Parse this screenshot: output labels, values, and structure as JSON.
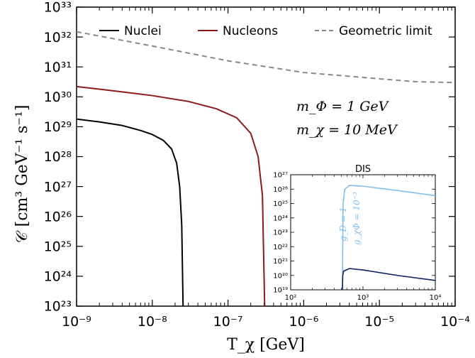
{
  "chart_data": [
    {
      "type": "line",
      "xscale": "log",
      "yscale": "log",
      "xlim": [
        1e-09,
        0.0001
      ],
      "ylim": [
        1e+23,
        1e+33
      ],
      "xlabel": "T_χ [GeV]",
      "ylabel": "𝒞 [cm³ GeV⁻¹ s⁻¹]",
      "x_ticks": [
        {
          "value": 1e-09,
          "label": "10⁻⁹"
        },
        {
          "value": 1e-08,
          "label": "10⁻⁸"
        },
        {
          "value": 1e-07,
          "label": "10⁻⁷"
        },
        {
          "value": 1e-06,
          "label": "10⁻⁶"
        },
        {
          "value": 1e-05,
          "label": "10⁻⁵"
        },
        {
          "value": 0.0001,
          "label": "10⁻⁴"
        }
      ],
      "y_ticks": [
        {
          "value": 1e+23,
          "label": "10²³"
        },
        {
          "value": 1e+24,
          "label": "10²⁴"
        },
        {
          "value": 1e+25,
          "label": "10²⁵"
        },
        {
          "value": 1e+26,
          "label": "10²⁶"
        },
        {
          "value": 1e+27,
          "label": "10²⁷"
        },
        {
          "value": 1e+28,
          "label": "10²⁸"
        },
        {
          "value": 1e+29,
          "label": "10²⁹"
        },
        {
          "value": 1e+30,
          "label": "10³⁰"
        },
        {
          "value": 1e+31,
          "label": "10³¹"
        },
        {
          "value": 1e+32,
          "label": "10³²"
        },
        {
          "value": 1e+33,
          "label": "10³³"
        }
      ],
      "legend_placement": "top",
      "series": [
        {
          "name": "Nuclei",
          "color": "#000000",
          "dash": "solid",
          "points": [
            [
              1e-09,
              1.8e+29
            ],
            [
              2e-09,
              1.45e+29
            ],
            [
              4e-09,
              1.1e+29
            ],
            [
              7e-09,
              7.5e+28
            ],
            [
              1e-08,
              5.5e+28
            ],
            [
              1.4e-08,
              3.5e+28
            ],
            [
              1.8e-08,
              1.8e+28
            ],
            [
              2.1e-08,
              6e+27
            ],
            [
              2.3e-08,
              1e+27
            ],
            [
              2.45e-08,
              5e+25
            ],
            [
              2.55e-08,
              1e+23
            ]
          ]
        },
        {
          "name": "Nucleons",
          "color": "#8b1a1a",
          "dash": "solid",
          "points": [
            [
              1e-09,
              2.2e+30
            ],
            [
              3e-09,
              1.6e+30
            ],
            [
              1e-08,
              1.1e+30
            ],
            [
              3e-08,
              7e+29
            ],
            [
              7e-08,
              4e+29
            ],
            [
              1.3e-07,
              2e+29
            ],
            [
              2e-07,
              6e+28
            ],
            [
              2.5e-07,
              1e+28
            ],
            [
              2.85e-07,
              5e+26
            ],
            [
              3.05e-07,
              1e+23
            ]
          ]
        },
        {
          "name": "Geometric limit",
          "color": "#888888",
          "dash": "dashed",
          "points": [
            [
              1e-09,
              1.5e+32
            ],
            [
              1e-08,
              5e+31
            ],
            [
              1e-07,
              1.6e+31
            ],
            [
              1e-06,
              6.5e+30
            ],
            [
              1e-05,
              4e+30
            ],
            [
              3e-05,
              3.2e+30
            ],
            [
              0.0001,
              3e+30
            ]
          ]
        }
      ],
      "annotations": [
        "m_Φ = 1 GeV",
        "m_χ = 10 MeV"
      ]
    },
    {
      "type": "line",
      "title": "DIS",
      "xscale": "log",
      "yscale": "log",
      "xlim": [
        100,
        10000
      ],
      "ylim": [
        1e+19,
        1e+27
      ],
      "x_ticks": [
        {
          "value": 100,
          "label": "10²"
        },
        {
          "value": 1000,
          "label": "10³"
        },
        {
          "value": 10000,
          "label": "10⁴"
        }
      ],
      "y_ticks": [
        {
          "value": 1e+19,
          "label": "10¹⁹"
        },
        {
          "value": 1e+20,
          "label": "10²⁰"
        },
        {
          "value": 1e+21,
          "label": "10²¹"
        },
        {
          "value": 1e+22,
          "label": "10²²"
        },
        {
          "value": 1e+23,
          "label": "10²³"
        },
        {
          "value": 1e+24,
          "label": "10²⁴"
        },
        {
          "value": 1e+25,
          "label": "10²⁵"
        },
        {
          "value": 1e+26,
          "label": "10²⁶"
        },
        {
          "value": 1e+27,
          "label": "10²⁷"
        }
      ],
      "series": [
        {
          "name": "g_D = 1",
          "color": "#7fbfef",
          "dash": "solid",
          "points": [
            [
              520,
              1e+19
            ],
            [
              525,
              1e+22
            ],
            [
              530,
              1e+25
            ],
            [
              560,
              1e+26
            ],
            [
              650,
              1.8e+26
            ],
            [
              1000,
              1.6e+26
            ],
            [
              3000,
              8e+25
            ],
            [
              10000,
              3.5e+25
            ]
          ]
        },
        {
          "name": "g_χΦ = 10⁻³",
          "color": "#0b1f6b",
          "dash": "solid",
          "points": [
            [
              520,
              1e+19
            ],
            [
              525,
              1e+20
            ],
            [
              540,
              2e+20
            ],
            [
              650,
              3e+20
            ],
            [
              1000,
              2.4e+20
            ],
            [
              3000,
              1e+20
            ],
            [
              10000,
              4.5e+19
            ]
          ]
        }
      ]
    }
  ]
}
